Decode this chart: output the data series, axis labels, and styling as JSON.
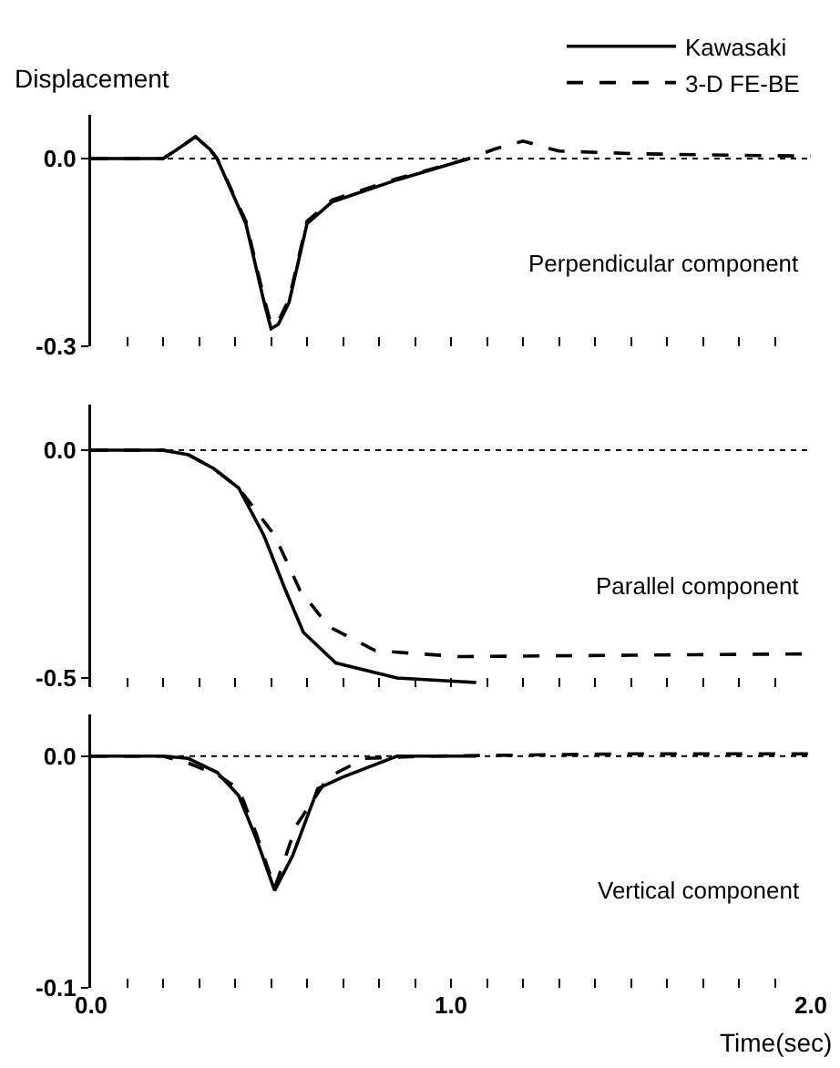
{
  "chart_data": [
    {
      "type": "line",
      "ylabel": "Displacement",
      "annotations": [
        "Perpendicular component"
      ],
      "legend": "top right",
      "tick_labels": "y",
      "grid": false,
      "marker": "none",
      "xlim": [
        0,
        2
      ],
      "ylim": [
        -0.3,
        0.07
      ],
      "xticks": [
        {
          "value": 0,
          "label": null
        },
        {
          "value": 0.1,
          "label": null
        },
        {
          "value": 0.2,
          "label": null
        },
        {
          "value": 0.3,
          "label": null
        },
        {
          "value": 0.4,
          "label": null
        },
        {
          "value": 0.5,
          "label": null
        },
        {
          "value": 0.6,
          "label": null
        },
        {
          "value": 0.7,
          "label": null
        },
        {
          "value": 0.8,
          "label": null
        },
        {
          "value": 0.9,
          "label": null
        },
        {
          "value": 1,
          "label": null
        },
        {
          "value": 1.1,
          "label": null
        },
        {
          "value": 1.2,
          "label": null
        },
        {
          "value": 1.3,
          "label": null
        },
        {
          "value": 1.4,
          "label": null
        },
        {
          "value": 1.5,
          "label": null
        },
        {
          "value": 1.6,
          "label": null
        },
        {
          "value": 1.7,
          "label": null
        },
        {
          "value": 1.8,
          "label": null
        },
        {
          "value": 1.9,
          "label": null
        },
        {
          "value": 2,
          "label": null
        }
      ],
      "yticks": [
        {
          "value": 0,
          "label": "0.0"
        },
        {
          "value": -0.3,
          "label": "-0.3"
        }
      ],
      "ref_lines": [
        {
          "axis": "y",
          "value": 0,
          "line_style": "dotted",
          "color": "#000000"
        }
      ],
      "series": [
        {
          "name": "Kawasaki",
          "color": "#000000",
          "line_style": "solid",
          "x": [
            0,
            0.2,
            0.24,
            0.29,
            0.33,
            0.35,
            0.43,
            0.48,
            0.5,
            0.52,
            0.55,
            0.6,
            0.67,
            0.85,
            1.05
          ],
          "values": [
            0,
            0,
            0.015,
            0.035,
            0.015,
            0,
            -0.104,
            -0.228,
            -0.272,
            -0.265,
            -0.23,
            -0.104,
            -0.069,
            -0.034,
            0
          ]
        },
        {
          "name": "3-D FE-BE",
          "color": "#000000",
          "line_style": "dashed",
          "x": [
            0,
            0.2,
            0.24,
            0.29,
            0.33,
            0.35,
            0.43,
            0.48,
            0.5,
            0.52,
            0.55,
            0.6,
            0.67,
            0.85,
            1.05,
            1.12,
            1.2,
            1.3,
            1.5,
            1.7,
            2
          ],
          "values": [
            0,
            0,
            0.015,
            0.035,
            0.015,
            0,
            -0.1,
            -0.222,
            -0.265,
            -0.26,
            -0.225,
            -0.1,
            -0.066,
            -0.032,
            0,
            0.015,
            0.028,
            0.012,
            0.008,
            0.006,
            0.004
          ]
        }
      ]
    },
    {
      "type": "line",
      "annotations": [
        "Parallel component"
      ],
      "tick_labels": "y",
      "grid": false,
      "marker": "none",
      "xlim": [
        0,
        2
      ],
      "ylim": [
        -0.52,
        0.1
      ],
      "xticks": [
        {
          "value": 0,
          "label": null
        },
        {
          "value": 0.1,
          "label": null
        },
        {
          "value": 0.2,
          "label": null
        },
        {
          "value": 0.3,
          "label": null
        },
        {
          "value": 0.4,
          "label": null
        },
        {
          "value": 0.5,
          "label": null
        },
        {
          "value": 0.6,
          "label": null
        },
        {
          "value": 0.7,
          "label": null
        },
        {
          "value": 0.8,
          "label": null
        },
        {
          "value": 0.9,
          "label": null
        },
        {
          "value": 1,
          "label": null
        },
        {
          "value": 1.1,
          "label": null
        },
        {
          "value": 1.2,
          "label": null
        },
        {
          "value": 1.3,
          "label": null
        },
        {
          "value": 1.4,
          "label": null
        },
        {
          "value": 1.5,
          "label": null
        },
        {
          "value": 1.6,
          "label": null
        },
        {
          "value": 1.7,
          "label": null
        },
        {
          "value": 1.8,
          "label": null
        },
        {
          "value": 1.9,
          "label": null
        },
        {
          "value": 2,
          "label": null
        }
      ],
      "yticks": [
        {
          "value": 0,
          "label": "0.0"
        },
        {
          "value": -0.5,
          "label": "-0.5"
        }
      ],
      "ref_lines": [
        {
          "axis": "y",
          "value": 0,
          "line_style": "dotted",
          "color": "#000000"
        }
      ],
      "series": [
        {
          "color": "#000000",
          "line_style": "solid",
          "x": [
            0,
            0.2,
            0.27,
            0.34,
            0.41,
            0.48,
            0.54,
            0.59,
            0.68,
            0.85,
            1.07
          ],
          "values": [
            0,
            0,
            -0.01,
            -0.04,
            -0.083,
            -0.187,
            -0.307,
            -0.4,
            -0.467,
            -0.5,
            -0.51
          ]
        },
        {
          "color": "#000000",
          "line_style": "dashed",
          "x": [
            0,
            0.2,
            0.27,
            0.34,
            0.41,
            0.51,
            0.58,
            0.66,
            0.79,
            1.02,
            1.5,
            2
          ],
          "values": [
            0,
            0,
            -0.01,
            -0.04,
            -0.083,
            -0.187,
            -0.307,
            -0.387,
            -0.44,
            -0.453,
            -0.45,
            -0.447
          ]
        }
      ]
    },
    {
      "type": "line",
      "xlabel": "Time(sec)",
      "annotations": [
        "Vertical component"
      ],
      "grid": false,
      "marker": "none",
      "xlim": [
        0,
        2
      ],
      "ylim": [
        -0.1,
        0.018
      ],
      "xticks": [
        {
          "value": 0,
          "label": "0.0"
        },
        {
          "value": 0.1,
          "label": null
        },
        {
          "value": 0.2,
          "label": null
        },
        {
          "value": 0.3,
          "label": null
        },
        {
          "value": 0.4,
          "label": null
        },
        {
          "value": 0.5,
          "label": null
        },
        {
          "value": 0.6,
          "label": null
        },
        {
          "value": 0.7,
          "label": null
        },
        {
          "value": 0.8,
          "label": null
        },
        {
          "value": 0.9,
          "label": null
        },
        {
          "value": 1,
          "label": "1.0"
        },
        {
          "value": 1.1,
          "label": null
        },
        {
          "value": 1.2,
          "label": null
        },
        {
          "value": 1.3,
          "label": null
        },
        {
          "value": 1.4,
          "label": null
        },
        {
          "value": 1.5,
          "label": null
        },
        {
          "value": 1.6,
          "label": null
        },
        {
          "value": 1.7,
          "label": null
        },
        {
          "value": 1.8,
          "label": null
        },
        {
          "value": 1.9,
          "label": null
        },
        {
          "value": 2,
          "label": "2.0"
        }
      ],
      "yticks": [
        {
          "value": 0,
          "label": "0.0"
        },
        {
          "value": -0.1,
          "label": "-0.1"
        }
      ],
      "ref_lines": [
        {
          "axis": "y",
          "value": 0,
          "line_style": "dotted",
          "color": "#000000"
        }
      ],
      "series": [
        {
          "color": "#000000",
          "line_style": "solid",
          "x": [
            0,
            0.2,
            0.27,
            0.35,
            0.41,
            0.46,
            0.51,
            0.56,
            0.63,
            0.7,
            0.85,
            1.07
          ],
          "values": [
            0,
            0,
            -0.001,
            -0.007,
            -0.017,
            -0.036,
            -0.058,
            -0.043,
            -0.014,
            -0.009,
            0,
            0
          ]
        },
        {
          "color": "#000000",
          "line_style": "dashed",
          "x": [
            0,
            0.2,
            0.27,
            0.35,
            0.41,
            0.46,
            0.51,
            0.57,
            0.66,
            0.76,
            0.93,
            1.5,
            2
          ],
          "values": [
            0,
            0,
            -0.003,
            -0.008,
            -0.014,
            -0.034,
            -0.057,
            -0.03,
            -0.009,
            -0.001,
            0,
            0.001,
            0.001
          ]
        }
      ]
    }
  ]
}
